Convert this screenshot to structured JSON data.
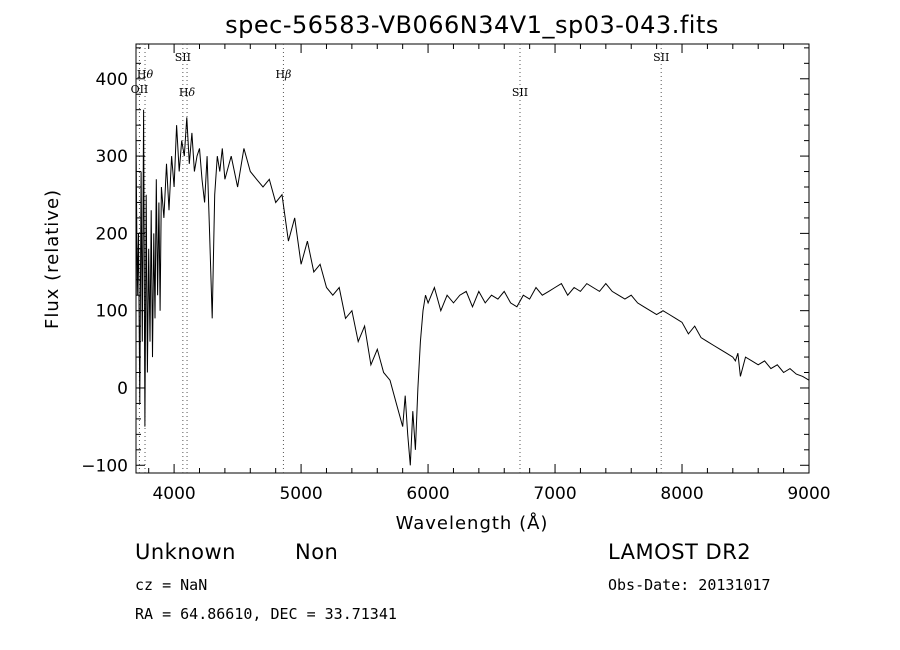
{
  "chart_data": {
    "type": "line",
    "title": "spec-56583-VB066N34V1_sp03-043.fits",
    "xlabel": "Wavelength (Å)",
    "ylabel": "Flux (relative)",
    "xlim": [
      3700,
      9000
    ],
    "ylim": [
      -110,
      445
    ],
    "x_ticks": [
      4000,
      5000,
      6000,
      7000,
      8000,
      9000
    ],
    "y_ticks": [
      -100,
      0,
      100,
      200,
      300,
      400
    ],
    "grid": false,
    "legend": "none",
    "line_color": "#000000",
    "series": [
      {
        "x": [
          3700,
          3710,
          3720,
          3730,
          3740,
          3750,
          3760,
          3770,
          3780,
          3790,
          3800,
          3810,
          3820,
          3830,
          3840,
          3850,
          3860,
          3870,
          3880,
          3890,
          3900,
          3920,
          3940,
          3960,
          3980,
          4000,
          4020,
          4040,
          4060,
          4080,
          4100,
          4120,
          4140,
          4160,
          4180,
          4200,
          4220,
          4240,
          4260,
          4280,
          4300,
          4320,
          4340,
          4360,
          4380,
          4400,
          4450,
          4500,
          4550,
          4600,
          4650,
          4700,
          4750,
          4800,
          4850,
          4900,
          4950,
          5000,
          5050,
          5100,
          5150,
          5200,
          5250,
          5300,
          5350,
          5400,
          5450,
          5500,
          5550,
          5600,
          5650,
          5700,
          5750,
          5800,
          5820,
          5840,
          5860,
          5880,
          5900,
          5920,
          5940,
          5960,
          5980,
          6000,
          6050,
          6100,
          6150,
          6200,
          6250,
          6300,
          6350,
          6400,
          6450,
          6500,
          6550,
          6600,
          6650,
          6700,
          6750,
          6800,
          6850,
          6900,
          6950,
          7000,
          7050,
          7100,
          7150,
          7200,
          7250,
          7300,
          7350,
          7400,
          7450,
          7500,
          7550,
          7600,
          7650,
          7700,
          7750,
          7800,
          7850,
          7900,
          7950,
          8000,
          8050,
          8100,
          8150,
          8200,
          8250,
          8300,
          8350,
          8400,
          8420,
          8440,
          8460,
          8500,
          8550,
          8600,
          8650,
          8700,
          8750,
          8800,
          8850,
          8900,
          8950,
          9000
        ],
        "y": [
          330,
          120,
          200,
          -20,
          280,
          60,
          360,
          -50,
          250,
          20,
          180,
          60,
          230,
          40,
          200,
          90,
          270,
          120,
          240,
          100,
          260,
          220,
          290,
          230,
          300,
          260,
          340,
          280,
          320,
          300,
          350,
          290,
          330,
          280,
          300,
          310,
          270,
          240,
          300,
          200,
          90,
          250,
          300,
          280,
          310,
          270,
          300,
          260,
          310,
          280,
          270,
          260,
          270,
          240,
          250,
          190,
          220,
          160,
          190,
          150,
          160,
          130,
          120,
          130,
          90,
          100,
          60,
          80,
          30,
          50,
          20,
          10,
          -20,
          -50,
          -10,
          -60,
          -100,
          -30,
          -80,
          0,
          60,
          100,
          120,
          110,
          130,
          100,
          120,
          110,
          120,
          125,
          105,
          125,
          110,
          120,
          115,
          125,
          110,
          105,
          120,
          115,
          130,
          120,
          125,
          130,
          135,
          120,
          130,
          125,
          135,
          130,
          125,
          135,
          125,
          120,
          115,
          120,
          110,
          105,
          100,
          95,
          100,
          95,
          90,
          85,
          70,
          80,
          65,
          60,
          55,
          50,
          45,
          40,
          35,
          45,
          15,
          40,
          35,
          30,
          35,
          25,
          30,
          20,
          25,
          18,
          15,
          10
        ]
      }
    ],
    "line_markers": [
      {
        "label": "OII",
        "x": 3727,
        "sub": ""
      },
      {
        "label": "H",
        "x": 3771,
        "sub": "θ"
      },
      {
        "label": "SII",
        "x": 4069,
        "sub": ""
      },
      {
        "label": "H",
        "x": 4102,
        "sub": "δ"
      },
      {
        "label": "H",
        "x": 4861,
        "sub": "β"
      },
      {
        "label": "SII",
        "x": 6724,
        "sub": ""
      },
      {
        "label": "SII",
        "x": 7836,
        "sub": ""
      }
    ]
  },
  "info": {
    "class": "Unknown",
    "subclass": "Non",
    "survey": "LAMOST DR2",
    "cz": "cz = NaN",
    "obs_date": "Obs-Date: 20131017",
    "coords": "RA =  64.86610, DEC =  33.71341"
  }
}
